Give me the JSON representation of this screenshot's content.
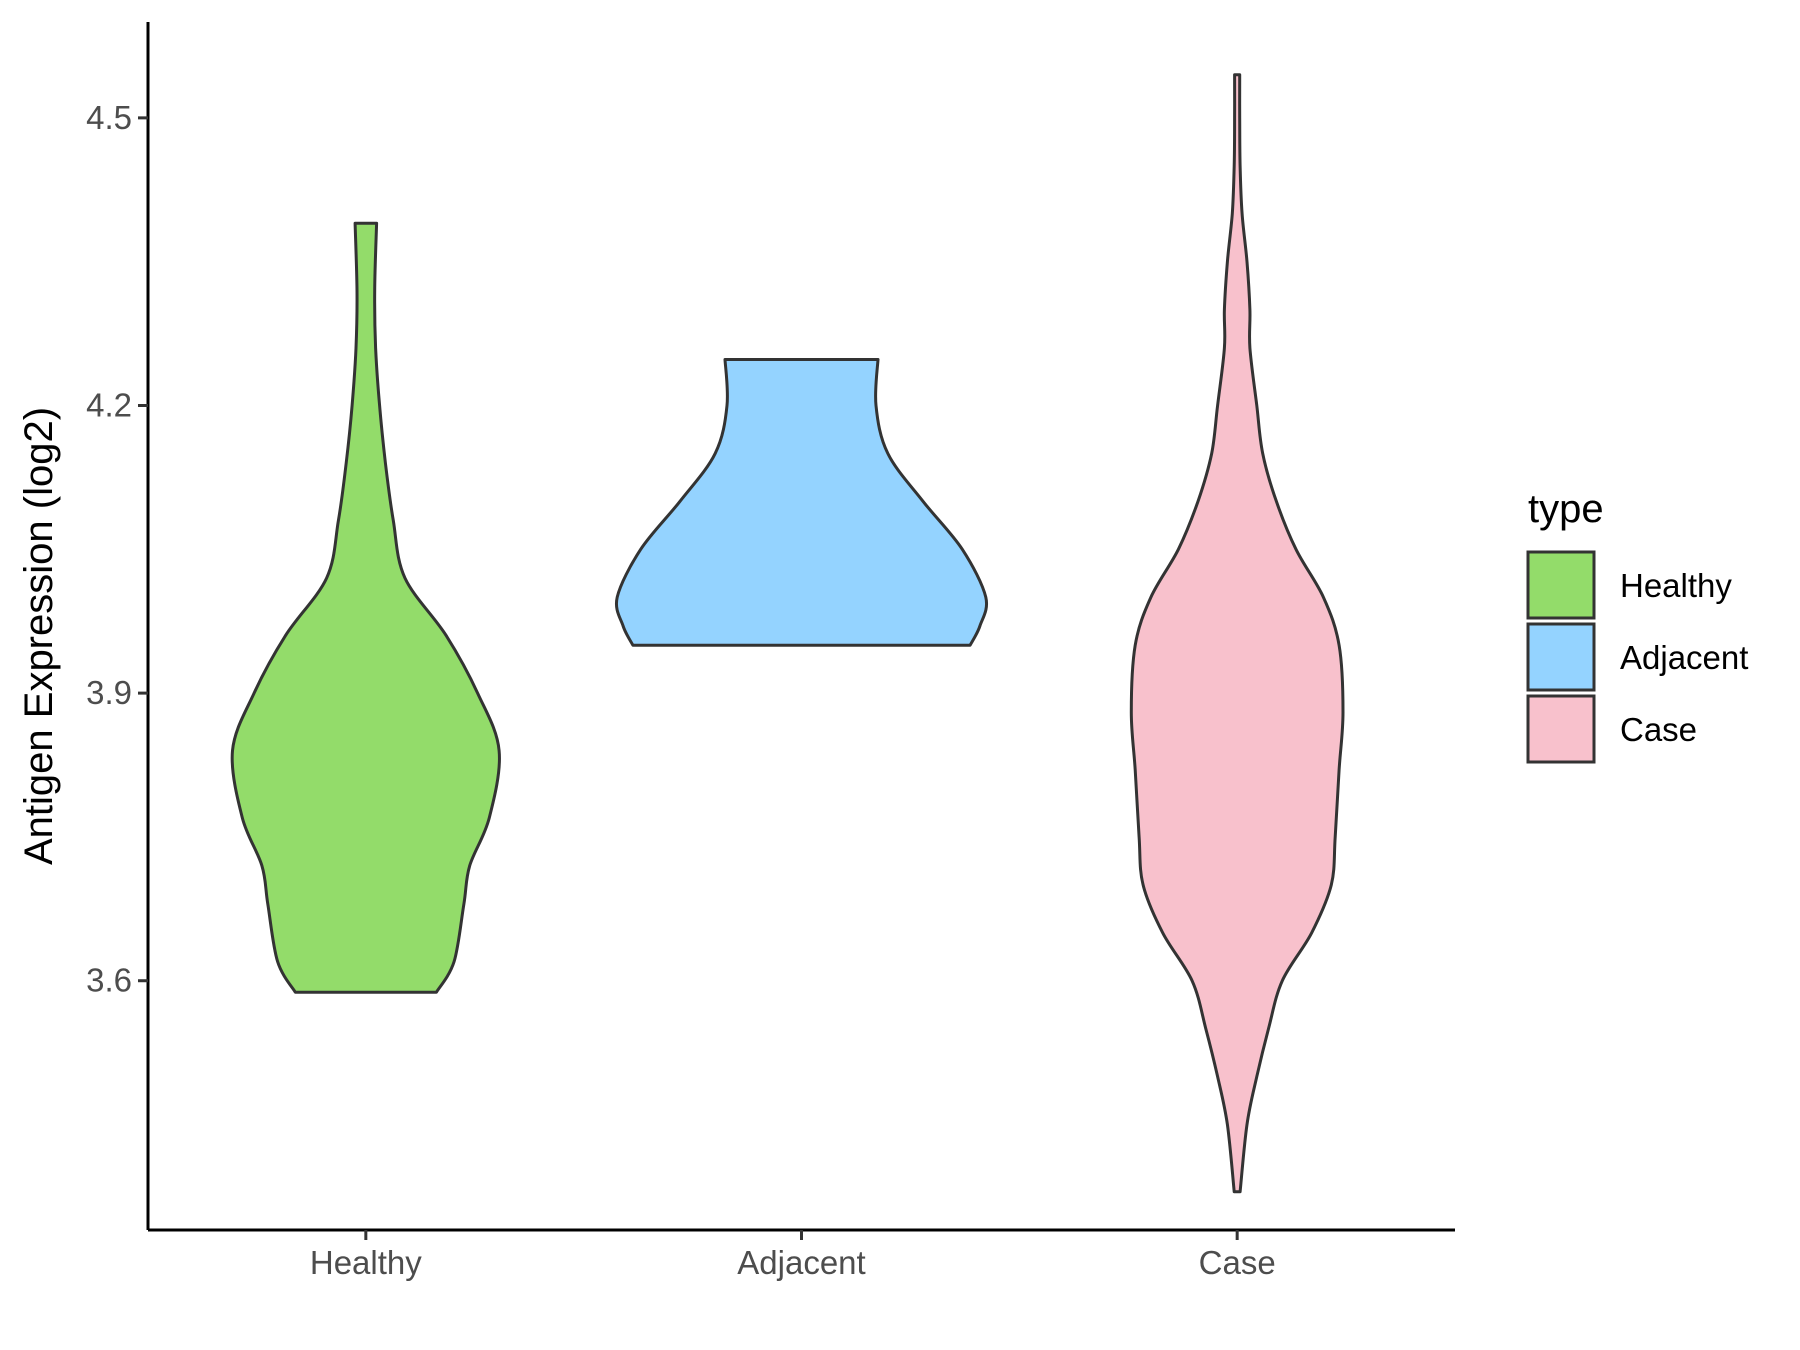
{
  "chart_data": {
    "type": "violin",
    "title": "",
    "xlabel": "",
    "ylabel": "Antigen Expression (log2)",
    "categories": [
      "Healthy",
      "Adjacent",
      "Case"
    ],
    "ylim": [
      3.34,
      4.6
    ],
    "yticks": [
      3.6,
      3.9,
      4.2,
      4.5
    ],
    "ytick_labels": [
      "3.6",
      "3.9",
      "4.2",
      "4.5"
    ],
    "grid": false,
    "legend": {
      "title": "type",
      "position": "right",
      "entries": [
        "Healthy",
        "Adjacent",
        "Case"
      ]
    },
    "colors": {
      "Healthy": "#93dc6a",
      "Adjacent": "#94d3ff",
      "Case": "#f8c1cc",
      "outline": "#333333"
    },
    "series": [
      {
        "category": "Healthy",
        "min": 3.588,
        "max": 4.39,
        "density": [
          [
            3.588,
            0.36
          ],
          [
            3.62,
            0.45
          ],
          [
            3.68,
            0.5
          ],
          [
            3.72,
            0.53
          ],
          [
            3.77,
            0.63
          ],
          [
            3.84,
            0.68
          ],
          [
            3.9,
            0.57
          ],
          [
            3.96,
            0.41
          ],
          [
            4.02,
            0.2
          ],
          [
            4.08,
            0.14
          ],
          [
            4.14,
            0.1
          ],
          [
            4.2,
            0.07
          ],
          [
            4.26,
            0.05
          ],
          [
            4.32,
            0.045
          ],
          [
            4.39,
            0.055
          ]
        ]
      },
      {
        "category": "Adjacent",
        "min": 3.95,
        "max": 4.248,
        "density": [
          [
            3.95,
            0.86
          ],
          [
            3.97,
            0.91
          ],
          [
            4.0,
            0.94
          ],
          [
            4.05,
            0.82
          ],
          [
            4.1,
            0.62
          ],
          [
            4.15,
            0.44
          ],
          [
            4.2,
            0.38
          ],
          [
            4.248,
            0.39
          ]
        ]
      },
      {
        "category": "Case",
        "min": 3.38,
        "max": 4.545,
        "density": [
          [
            3.38,
            0.015
          ],
          [
            3.45,
            0.05
          ],
          [
            3.5,
            0.1
          ],
          [
            3.55,
            0.16
          ],
          [
            3.6,
            0.23
          ],
          [
            3.65,
            0.38
          ],
          [
            3.7,
            0.48
          ],
          [
            3.75,
            0.5
          ],
          [
            3.82,
            0.52
          ],
          [
            3.88,
            0.54
          ],
          [
            3.95,
            0.52
          ],
          [
            4.0,
            0.44
          ],
          [
            4.05,
            0.3
          ],
          [
            4.1,
            0.2
          ],
          [
            4.15,
            0.13
          ],
          [
            4.2,
            0.1
          ],
          [
            4.26,
            0.065
          ],
          [
            4.3,
            0.065
          ],
          [
            4.35,
            0.05
          ],
          [
            4.4,
            0.025
          ],
          [
            4.45,
            0.015
          ],
          [
            4.5,
            0.013
          ],
          [
            4.545,
            0.013
          ]
        ]
      }
    ]
  }
}
